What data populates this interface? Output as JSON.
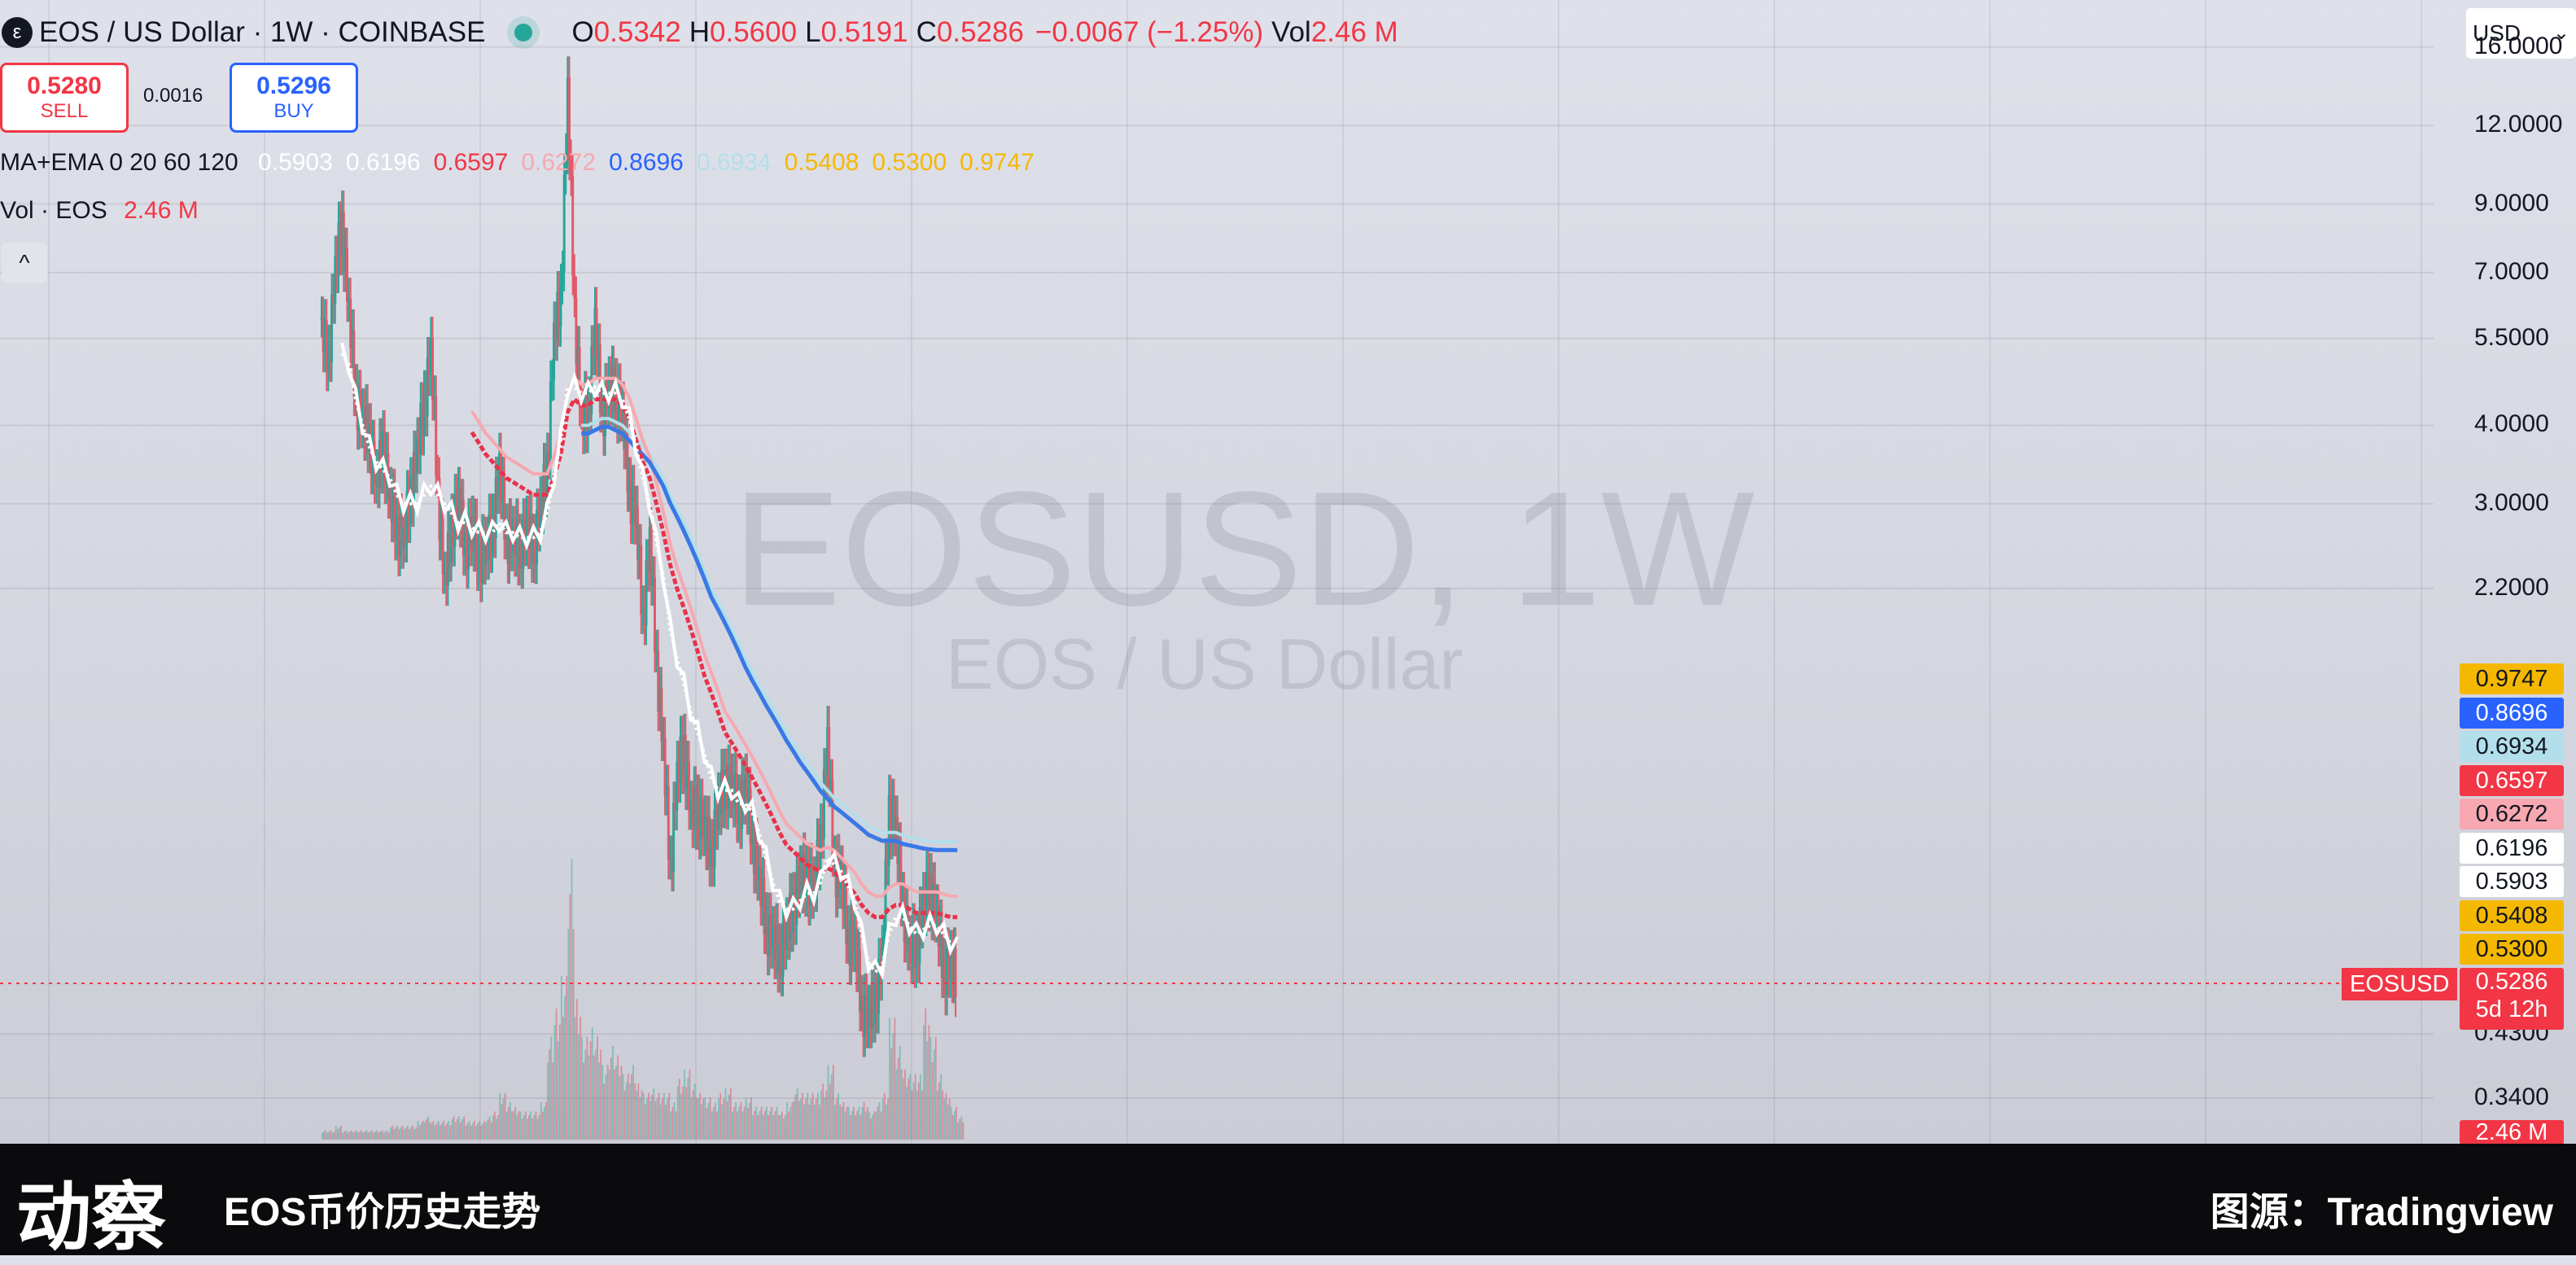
{
  "header": {
    "logo_glyph": "ε",
    "title": "EOS / US Dollar · 1W · COINBASE",
    "ohlc": [
      {
        "k": "O",
        "v": "0.5342"
      },
      {
        "k": "H",
        "v": "0.5600"
      },
      {
        "k": "L",
        "v": "0.5191"
      },
      {
        "k": "C",
        "v": "0.5286"
      },
      {
        "k": "",
        "v": "−0.0067 (−1.25%)"
      },
      {
        "k": "Vol",
        "v": "2.46 M"
      }
    ]
  },
  "trade": {
    "sell_price": "0.5280",
    "sell_label": "SELL",
    "spread": "0.0016",
    "buy_price": "0.5296",
    "buy_label": "BUY"
  },
  "indicators": {
    "ma_label": "MA+EMA 0 20 60 120",
    "ma_values": [
      {
        "v": "0.5903",
        "c": "#ffffff"
      },
      {
        "v": "0.6196",
        "c": "#ffffff"
      },
      {
        "v": "0.6597",
        "c": "#f23645"
      },
      {
        "v": "0.6272",
        "c": "#f7a8b0"
      },
      {
        "v": "0.8696",
        "c": "#2962ff"
      },
      {
        "v": "0.6934",
        "c": "#b2dfeb"
      },
      {
        "v": "0.5408",
        "c": "#f5b800"
      },
      {
        "v": "0.5300",
        "c": "#f5b800"
      },
      {
        "v": "0.9747",
        "c": "#f5b800"
      }
    ],
    "vol_label": "Vol · EOS",
    "vol_value": "2.46 M",
    "collapse_icon": "^"
  },
  "currency_select": {
    "value": "USD",
    "icon": "chevron-down"
  },
  "chart_data": {
    "type": "candlestick",
    "symbol": "EOSUSD",
    "timeframe": "1W",
    "exchange": "COINBASE",
    "y_scale": "log",
    "ylim": [
      0.31,
      19.0
    ],
    "y_ticks": [
      {
        "value": 16.0,
        "label": "16.0000"
      },
      {
        "value": 12.0,
        "label": "12.0000"
      },
      {
        "value": 9.0,
        "label": "9.0000"
      },
      {
        "value": 7.0,
        "label": "7.0000"
      },
      {
        "value": 5.5,
        "label": "5.5000"
      },
      {
        "value": 4.0,
        "label": "4.0000"
      },
      {
        "value": 3.0,
        "label": "3.0000"
      },
      {
        "value": 2.2,
        "label": "2.2000"
      },
      {
        "value": 0.43,
        "label": "0.4300"
      },
      {
        "value": 0.34,
        "label": "0.3400"
      }
    ],
    "price_tags": [
      {
        "value": "0.9747",
        "bg": "#f5b800",
        "fg": "#131722"
      },
      {
        "value": "0.8696",
        "bg": "#2962ff",
        "fg": "#ffffff"
      },
      {
        "value": "0.6934",
        "bg": "#b2dfeb",
        "fg": "#131722"
      },
      {
        "value": "0.6597",
        "bg": "#f23645",
        "fg": "#ffffff"
      },
      {
        "value": "0.6272",
        "bg": "#f7a8b0",
        "fg": "#131722"
      },
      {
        "value": "0.6196",
        "bg": "#ffffff",
        "fg": "#131722"
      },
      {
        "value": "0.5903",
        "bg": "#ffffff",
        "fg": "#131722"
      },
      {
        "value": "0.5408",
        "bg": "#f5b800",
        "fg": "#131722"
      },
      {
        "value": "0.5300",
        "bg": "#f5b800",
        "fg": "#131722"
      }
    ],
    "last_price": {
      "label": "EOSUSD",
      "value": "0.5286",
      "countdown": "5d 12h"
    },
    "volume_tag": "2.46 M",
    "watermark": {
      "symbol": "EOSUSD, 1W",
      "name": "EOS / US Dollar"
    },
    "price_path": [
      5.6,
      5.2,
      7.0,
      8.5,
      6.0,
      4.5,
      4.0,
      3.9,
      3.2,
      3.8,
      3.0,
      2.8,
      2.6,
      3.2,
      3.6,
      4.4,
      5.2,
      3.2,
      2.2,
      2.8,
      3.0,
      2.6,
      2.7,
      2.5,
      2.5,
      2.8,
      3.4,
      2.7,
      2.6,
      2.6,
      2.7,
      2.6,
      2.9,
      3.5,
      5.5,
      6.5,
      13.5,
      6.2,
      4.0,
      4.3,
      5.8,
      4.2,
      4.5,
      4.6,
      4.1,
      3.2,
      2.8,
      2.0,
      2.6,
      1.7,
      1.2,
      0.8,
      1.1,
      1.25,
      0.95,
      1.0,
      0.9,
      0.85,
      0.98,
      1.1,
      1.05,
      1.0,
      1.05,
      0.9,
      0.75,
      0.65,
      0.6,
      0.58,
      0.62,
      0.7,
      0.75,
      0.78,
      0.72,
      0.9,
      1.25,
      0.8,
      0.75,
      0.62,
      0.6,
      0.48,
      0.45,
      0.5,
      0.56,
      1.0,
      0.9,
      0.7,
      0.58,
      0.6,
      0.68,
      0.75,
      0.65,
      0.55,
      0.55,
      0.53
    ],
    "ema20": [
      null,
      null,
      null,
      5.2,
      5.0,
      4.4,
      4.0,
      3.7,
      3.5,
      3.4,
      3.3,
      3.1,
      3.0,
      3.0,
      3.0,
      3.1,
      3.2,
      3.1,
      3.0,
      2.9,
      2.8,
      2.8,
      2.75,
      2.7,
      2.7,
      2.7,
      2.8,
      2.7,
      2.7,
      2.65,
      2.65,
      2.65,
      2.7,
      2.9,
      3.3,
      3.8,
      4.6,
      4.6,
      4.5,
      4.5,
      4.6,
      4.5,
      4.5,
      4.5,
      4.4,
      4.1,
      3.7,
      3.3,
      3.0,
      2.6,
      2.3,
      1.9,
      1.7,
      1.55,
      1.4,
      1.3,
      1.2,
      1.1,
      1.05,
      1.05,
      1.05,
      1.0,
      1.0,
      0.97,
      0.9,
      0.82,
      0.75,
      0.7,
      0.68,
      0.68,
      0.7,
      0.72,
      0.72,
      0.75,
      0.82,
      0.8,
      0.78,
      0.74,
      0.7,
      0.62,
      0.56,
      0.54,
      0.55,
      0.62,
      0.66,
      0.66,
      0.64,
      0.62,
      0.63,
      0.64,
      0.64,
      0.62,
      0.6,
      0.59
    ],
    "ema60": [
      null,
      null,
      null,
      null,
      null,
      null,
      null,
      null,
      null,
      null,
      null,
      null,
      null,
      null,
      null,
      null,
      null,
      null,
      null,
      null,
      null,
      null,
      3.9,
      3.75,
      3.6,
      3.5,
      3.4,
      3.3,
      3.25,
      3.2,
      3.15,
      3.1,
      3.1,
      3.1,
      3.3,
      3.6,
      4.2,
      4.4,
      4.3,
      4.3,
      4.4,
      4.4,
      4.4,
      4.4,
      4.3,
      4.1,
      3.8,
      3.5,
      3.3,
      3.0,
      2.7,
      2.4,
      2.2,
      2.05,
      1.9,
      1.75,
      1.6,
      1.5,
      1.4,
      1.3,
      1.25,
      1.2,
      1.15,
      1.1,
      1.05,
      1.0,
      0.95,
      0.9,
      0.86,
      0.84,
      0.82,
      0.8,
      0.79,
      0.78,
      0.79,
      0.78,
      0.76,
      0.74,
      0.72,
      0.69,
      0.67,
      0.66,
      0.66,
      0.68,
      0.69,
      0.69,
      0.68,
      0.67,
      0.67,
      0.67,
      0.67,
      0.665,
      0.66,
      0.6597
    ],
    "ema120": [
      null,
      null,
      null,
      null,
      null,
      null,
      null,
      null,
      null,
      null,
      null,
      null,
      null,
      null,
      null,
      null,
      null,
      null,
      null,
      null,
      null,
      null,
      null,
      null,
      null,
      null,
      null,
      null,
      null,
      null,
      null,
      null,
      null,
      null,
      null,
      null,
      null,
      null,
      4.0,
      4.0,
      4.05,
      4.1,
      4.1,
      4.05,
      4.0,
      3.9,
      3.8,
      3.7,
      3.6,
      3.45,
      3.3,
      3.1,
      2.95,
      2.8,
      2.65,
      2.5,
      2.35,
      2.2,
      2.1,
      2.0,
      1.9,
      1.8,
      1.7,
      1.62,
      1.55,
      1.48,
      1.42,
      1.36,
      1.3,
      1.25,
      1.2,
      1.16,
      1.12,
      1.08,
      1.05,
      1.02,
      1.0,
      0.98,
      0.96,
      0.94,
      0.92,
      0.91,
      0.9,
      0.9,
      0.9,
      0.89,
      0.885,
      0.88,
      0.875,
      0.872,
      0.87,
      0.87,
      0.87,
      0.8696
    ],
    "volume": [
      0.2,
      0.2,
      0.3,
      0.2,
      0.2,
      0.2,
      0.2,
      0.2,
      0.2,
      0.2,
      0.3,
      0.3,
      0.3,
      0.3,
      0.4,
      0.5,
      0.4,
      0.4,
      0.4,
      0.5,
      0.5,
      0.4,
      0.4,
      0.4,
      0.5,
      0.6,
      1.0,
      0.8,
      0.7,
      0.6,
      0.6,
      0.6,
      0.8,
      2.2,
      2.8,
      3.5,
      6.0,
      3.0,
      2.2,
      2.4,
      2.2,
      1.6,
      2.0,
      1.8,
      1.4,
      1.6,
      1.2,
      1.0,
      1.1,
      1.0,
      1.0,
      0.8,
      1.3,
      1.5,
      1.2,
      1.0,
      0.9,
      0.8,
      1.0,
      1.1,
      0.8,
      0.8,
      0.9,
      0.7,
      0.7,
      0.7,
      0.7,
      0.6,
      0.8,
      1.1,
      1.0,
      1.0,
      1.0,
      1.2,
      1.6,
      1.0,
      0.8,
      0.7,
      0.7,
      0.8,
      0.6,
      0.8,
      1.0,
      2.6,
      2.0,
      1.5,
      1.4,
      1.4,
      2.8,
      2.2,
      1.4,
      1.0,
      0.7,
      0.5
    ]
  },
  "banner": {
    "logo": "动察",
    "title": "EOS币价历史走势",
    "source": "图源：Tradingview"
  }
}
